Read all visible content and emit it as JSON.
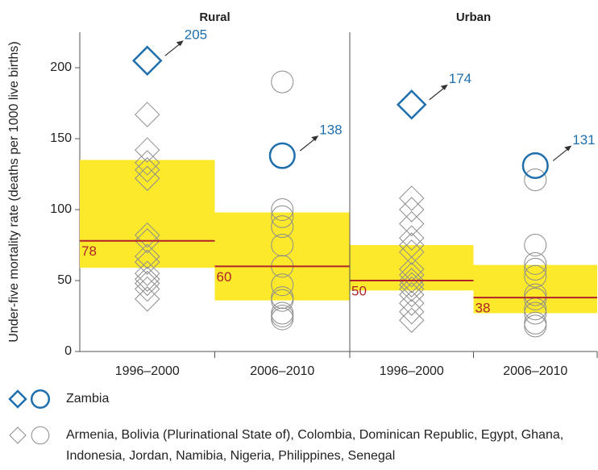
{
  "chart_data": {
    "type": "dot-box",
    "ylabel": "Under-five mortality rate (deaths per 1000 live births)",
    "ylim": [
      0,
      225
    ],
    "yticks": [
      0,
      50,
      100,
      150,
      200
    ],
    "box_color": "#fce92c",
    "median_color": "#b0242a",
    "highlight_color": "#1f6fad",
    "other_color": "#8c8c8c",
    "panels": [
      {
        "title": "Rural",
        "groups": [
          {
            "category": "1996–2000",
            "marker": "diamond",
            "q1": 59,
            "q3": 135,
            "median": 78,
            "zambia": 205,
            "others": [
              167,
              142,
              133,
              128,
              122,
              82,
              78,
              67,
              63,
              55,
              51,
              48,
              44,
              37
            ]
          },
          {
            "category": "2006–2010",
            "marker": "circle",
            "q1": 36,
            "q3": 98,
            "median": 60,
            "zambia": 138,
            "others": [
              190,
              100,
              95,
              88,
              75,
              60,
              47,
              38,
              36,
              27,
              25,
              23
            ]
          }
        ]
      },
      {
        "title": "Urban",
        "groups": [
          {
            "category": "1996–2000",
            "marker": "diamond",
            "q1": 43,
            "q3": 75,
            "median": 50,
            "zambia": 174,
            "others": [
              108,
              100,
              90,
              80,
              75,
              70,
              58,
              54,
              50,
              47,
              44,
              40,
              34,
              28,
              22
            ]
          },
          {
            "category": "2006–2010",
            "marker": "circle",
            "q1": 27,
            "q3": 61,
            "median": 38,
            "zambia": 131,
            "others": [
              121,
              75,
              62,
              58,
              53,
              40,
              37,
              30,
              27,
              20,
              18
            ]
          }
        ]
      }
    ],
    "legend": [
      {
        "label": "Zambia",
        "color": "#1f6fad"
      },
      {
        "label": "Armenia, Bolivia (Plurinational State of), Colombia, Dominican Republic, Egypt, Ghana, Indonesia, Jordan, Namibia, Nigeria, Philippines, Senegal",
        "color": "#8c8c8c"
      }
    ]
  }
}
